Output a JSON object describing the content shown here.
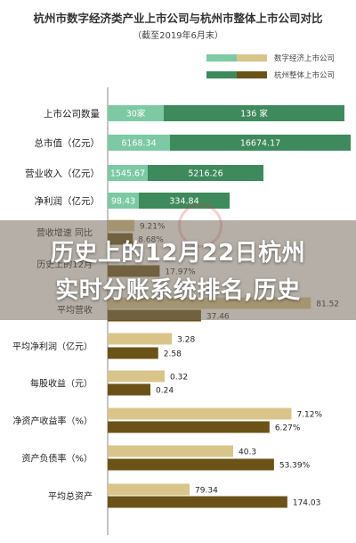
{
  "title": "杭州市数字经济类产业上市公司与杭州市整体上市公司对比",
  "subtitle": "（截至2019年6月末）",
  "legend": [
    {
      "label": "数字经济上市公司",
      "colors": [
        "#7cc9a4",
        "#d9c58a"
      ]
    },
    {
      "label": "杭州整体上市公司",
      "colors": [
        "#3e8a5c",
        "#6b5318"
      ]
    }
  ],
  "colors": {
    "green_light": "#7cc9a4",
    "green_dark": "#3e8a5c",
    "gold_light": "#d9c58a",
    "gold_dark": "#6b5318"
  },
  "banner": {
    "line1": "历史上的12月22日杭州",
    "line2": "实时分账系统排名,历史"
  },
  "chart_data": {
    "type": "bar",
    "orientation": "horizontal",
    "title": "杭州市数字经济类产业上市公司与杭州市整体上市公司对比",
    "subtitle": "（截至2019年6月末）",
    "series_names": [
      "数字经济上市公司",
      "杭州整体上市公司"
    ],
    "groups": [
      {
        "category": "上市公司数量",
        "style": "stacked",
        "values": [
          30,
          136
        ],
        "labels": [
          "30家",
          "136 家"
        ]
      },
      {
        "category": "总市值（亿元）",
        "style": "stacked",
        "values": [
          6168.34,
          16674.17
        ],
        "labels": [
          "6168.34",
          "16674.17"
        ]
      },
      {
        "category": "营业收入（亿元）",
        "style": "stacked",
        "values": [
          1545.67,
          5216.26
        ],
        "labels": [
          "1545.67",
          "5216.26"
        ]
      },
      {
        "category": "净利润（亿元）",
        "style": "stacked",
        "values": [
          98.43,
          334.84
        ],
        "labels": [
          "98.43",
          "334.84"
        ]
      },
      {
        "category": "营收增速 同比",
        "style": "paired",
        "values": [
          9.21,
          8.68
        ],
        "labels": [
          "9.21%",
          "8.68%"
        ]
      },
      {
        "category": "历史上的12月",
        "style": "paired",
        "values": [
          null,
          17.97
        ],
        "labels": [
          "",
          "17.97%"
        ]
      },
      {
        "category": "平均营收",
        "style": "paired",
        "values": [
          81.52,
          37.46
        ],
        "labels": [
          "81.52",
          "37.46"
        ]
      },
      {
        "category": "平均净利润（亿元）",
        "style": "paired",
        "values": [
          3.28,
          2.58
        ],
        "labels": [
          "3.28",
          "2.58"
        ]
      },
      {
        "category": "每股收益（元）",
        "style": "paired",
        "values": [
          0.32,
          0.24
        ],
        "labels": [
          "0.32",
          "0.24"
        ]
      },
      {
        "category": "净资产收益率（%）",
        "style": "paired",
        "values": [
          7.12,
          6.27
        ],
        "labels": [
          "7.12%",
          "6.27%"
        ]
      },
      {
        "category": "资产负债率（%）",
        "style": "paired",
        "values": [
          40.3,
          53.39
        ],
        "labels": [
          "40.3",
          "53.39%"
        ]
      },
      {
        "category": "平均总资产",
        "style": "paired",
        "values": [
          79.34,
          174.03
        ],
        "labels": [
          "79.34",
          "174.03"
        ]
      }
    ]
  }
}
